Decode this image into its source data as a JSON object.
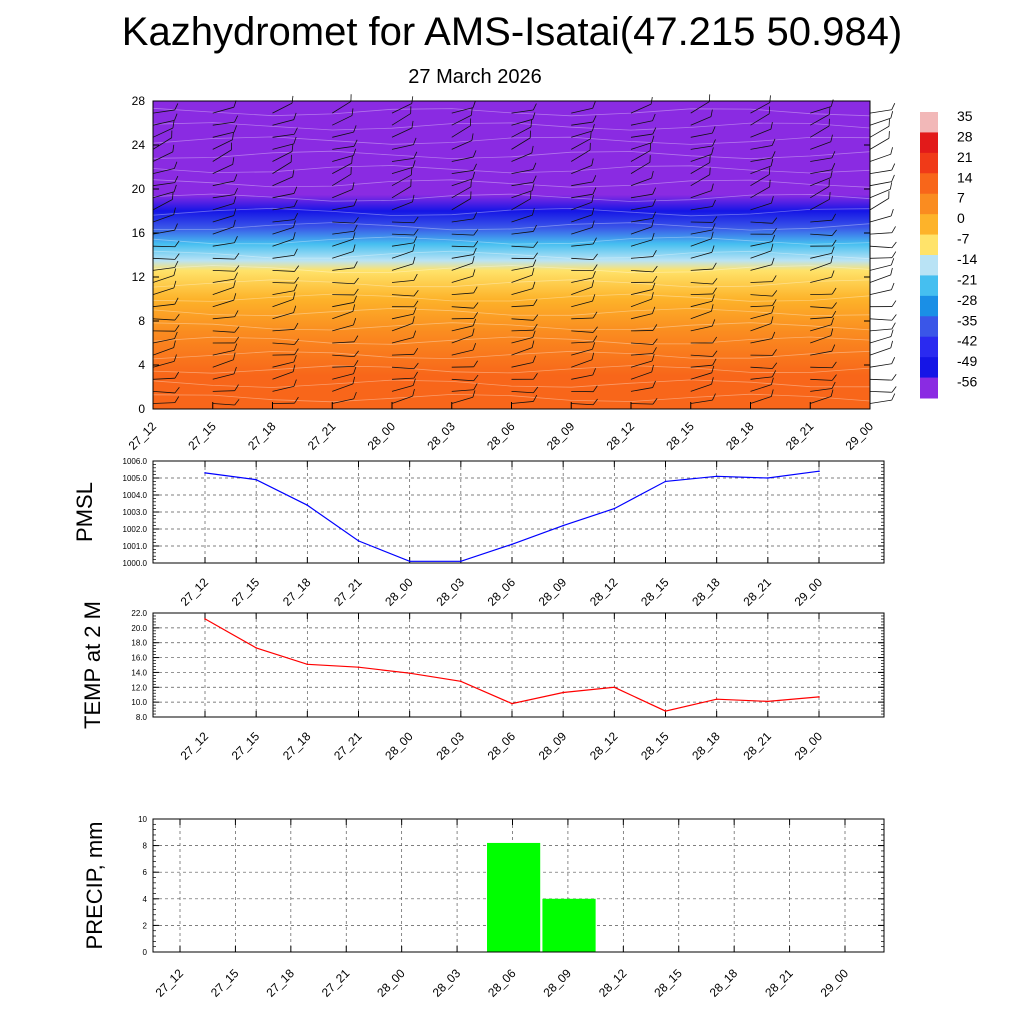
{
  "title": "Kazhydromet for AMS-Isatai(47.215 50.984)",
  "subtitle": "27 March 2026",
  "time_labels": [
    "27_12",
    "27_15",
    "27_18",
    "27_21",
    "28_00",
    "28_03",
    "28_06",
    "28_09",
    "28_12",
    "28_15",
    "28_18",
    "28_21",
    "29_00"
  ],
  "chart_data": [
    {
      "type": "heatmap",
      "title": "",
      "ylabel": "",
      "x": [
        "27_12",
        "27_15",
        "27_18",
        "27_21",
        "28_00",
        "28_03",
        "28_06",
        "28_09",
        "28_12",
        "28_15",
        "28_18",
        "28_21",
        "29_00"
      ],
      "y_ticks": [
        0,
        4,
        8,
        12,
        16,
        20,
        24,
        28
      ],
      "ylim": [
        0,
        28
      ],
      "colorbar_labels": [
        "35",
        "28",
        "21",
        "14",
        "7",
        "0",
        "-7",
        "-14",
        "-21",
        "-28",
        "-35",
        "-42",
        "-49",
        "-56"
      ],
      "colorbar_colors": [
        "#f2b8b8",
        "#e21a1a",
        "#f03a18",
        "#f8661a",
        "#fa8c20",
        "#fdb32a",
        "#ffe36a",
        "#b9e3f5",
        "#45bff0",
        "#1a8fe6",
        "#3a56e8",
        "#2a2af0",
        "#1515e6",
        "#8a2be2"
      ],
      "profile": [
        {
          "h": 0,
          "t": 16
        },
        {
          "h": 3,
          "t": 14
        },
        {
          "h": 7,
          "t": 8
        },
        {
          "h": 10,
          "t": 3
        },
        {
          "h": 12.6,
          "t": -7
        },
        {
          "h": 13.5,
          "t": -14
        },
        {
          "h": 15,
          "t": -21
        },
        {
          "h": 16.5,
          "t": -32
        },
        {
          "h": 18,
          "t": -44
        },
        {
          "h": 19.5,
          "t": -55
        },
        {
          "h": 22,
          "t": -56
        },
        {
          "h": 24,
          "t": -60
        },
        {
          "h": 26,
          "t": -56
        },
        {
          "h": 28,
          "t": -52
        }
      ]
    },
    {
      "type": "line",
      "ylabel": "PMSL",
      "x": [
        "27_12",
        "27_15",
        "27_18",
        "27_21",
        "28_00",
        "28_03",
        "28_06",
        "28_09",
        "28_12",
        "28_15",
        "28_18",
        "28_21",
        "29_00"
      ],
      "values": [
        1005.3,
        1004.9,
        1003.4,
        1001.3,
        1000.1,
        1000.1,
        1001.1,
        1002.2,
        1003.2,
        1004.8,
        1005.1,
        1005.0,
        1005.4
      ],
      "ylim": [
        1000.0,
        1006.0
      ],
      "y_ticks": [
        "1000.0",
        "1001.0",
        "1002.0",
        "1003.0",
        "1004.0",
        "1005.0",
        "1006.0"
      ],
      "color": "#0000ff"
    },
    {
      "type": "line",
      "ylabel": "TEMP at 2 M",
      "x": [
        "27_12",
        "27_15",
        "27_18",
        "27_21",
        "28_00",
        "28_03",
        "28_06",
        "28_09",
        "28_12",
        "28_15",
        "28_18",
        "28_21",
        "29_00"
      ],
      "values": [
        21.2,
        17.3,
        15.1,
        14.7,
        13.9,
        12.8,
        9.8,
        11.3,
        12.0,
        8.8,
        10.4,
        10.1,
        10.7
      ],
      "ylim": [
        8.0,
        22.0
      ],
      "y_ticks": [
        "8.0",
        "10.0",
        "12.0",
        "14.0",
        "16.0",
        "18.0",
        "20.0",
        "22.0"
      ],
      "color": "#ff0000"
    },
    {
      "type": "bar",
      "ylabel": "PRECIP, mm",
      "categories": [
        "27_12",
        "27_15",
        "27_18",
        "27_21",
        "28_00",
        "28_03",
        "28_06",
        "28_09",
        "28_12",
        "28_15",
        "28_18",
        "28_21",
        "29_00"
      ],
      "values": [
        0,
        0,
        0,
        0,
        0,
        0,
        8.2,
        4.0,
        0,
        0,
        0,
        0,
        0
      ],
      "ylim": [
        0,
        10
      ],
      "y_ticks": [
        "0",
        "2",
        "4",
        "6",
        "8",
        "10"
      ],
      "color": "#00ff00"
    }
  ]
}
